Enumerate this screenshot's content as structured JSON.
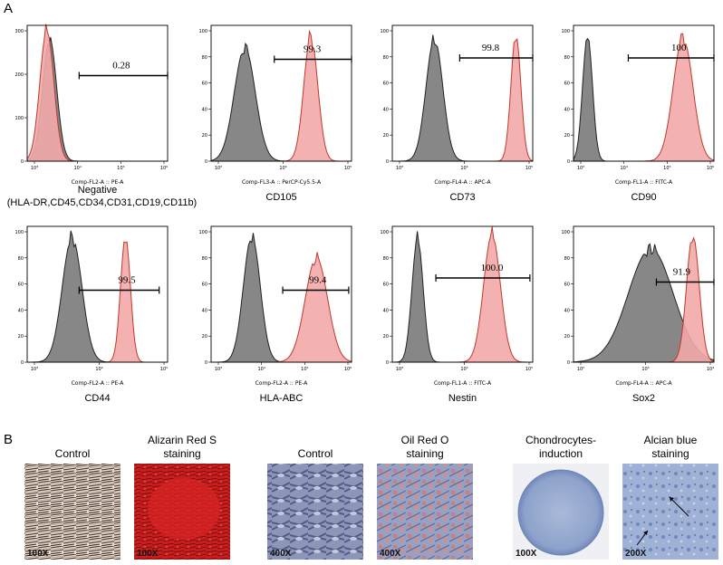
{
  "panel_a": {
    "letter": "A",
    "y_ticks_300": [
      "0",
      "100",
      "200",
      "300"
    ],
    "y_ticks_100": [
      "0",
      "20",
      "40",
      "60",
      "80",
      "100"
    ],
    "plots": [
      {
        "marker": "Negative",
        "marker_line2": "(HLA-DR,CD45,CD34,CD31,CD19,CD11b)",
        "xlabel": "Comp-FL2-A :: PE-A",
        "percent": "0.28",
        "ymax": 300,
        "xticks": [
          "10³",
          "10⁴",
          "10⁵",
          "10⁶"
        ]
      },
      {
        "marker": "CD105",
        "xlabel": "Comp-FL3-A :: PerCP-Cy5.5-A",
        "percent": "99.3",
        "ymax": 100,
        "xticks": [
          "10³",
          "10⁴",
          "10⁵"
        ]
      },
      {
        "marker": "CD73",
        "xlabel": "Comp-FL4-A :: APC-A",
        "percent": "99.8",
        "ymax": 100,
        "xticks": [
          "10³",
          "10⁴",
          "10⁵"
        ]
      },
      {
        "marker": "CD90",
        "xlabel": "Comp-FL1-A :: FITC-A",
        "percent": "100",
        "ymax": 100,
        "xticks": [
          "10³",
          "10⁴",
          "10⁵",
          "10⁶"
        ]
      },
      {
        "marker": "CD44",
        "xlabel": "Comp-FL2-A :: PE-A",
        "percent": "99.5",
        "ymax": 100,
        "xticks": [
          "10³",
          "10⁴",
          "10⁵"
        ]
      },
      {
        "marker": "HLA-ABC",
        "xlabel": "Comp-FL2-A :: PE-A",
        "percent": "99.4",
        "ymax": 100,
        "xticks": [
          "10³",
          "10⁴",
          "10⁵",
          "10⁶"
        ]
      },
      {
        "marker": "Nestin",
        "xlabel": "Comp-FL1-A :: FITC-A",
        "percent": "100.0",
        "ymax": 100,
        "xticks": [
          "10³",
          "10⁴",
          "10⁵"
        ]
      },
      {
        "marker": "Sox2",
        "xlabel": "Comp-FL4-A :: APC-A",
        "percent": "91.9",
        "ymax": 100,
        "xticks": [
          "10²",
          "10³",
          "10⁴"
        ]
      }
    ]
  },
  "panel_b": {
    "letter": "B",
    "images": [
      {
        "title": "Control",
        "magnification": "100X"
      },
      {
        "title": "Alizarin Red S",
        "title_line2": "staining",
        "magnification": "100X"
      },
      {
        "title": "Control",
        "magnification": "400X"
      },
      {
        "title": "Oil Red O",
        "title_line2": "staining",
        "magnification": "400X"
      },
      {
        "title": "Chondrocytes-",
        "title_line2": "induction",
        "magnification": "100X"
      },
      {
        "title": "Alcian blue",
        "title_line2": "staining",
        "magnification": "200X"
      }
    ]
  },
  "colors": {
    "isotype_fill": "#7a7a7a",
    "stained_fill": "#f2a9a9",
    "stained_line": "#c0392b"
  }
}
